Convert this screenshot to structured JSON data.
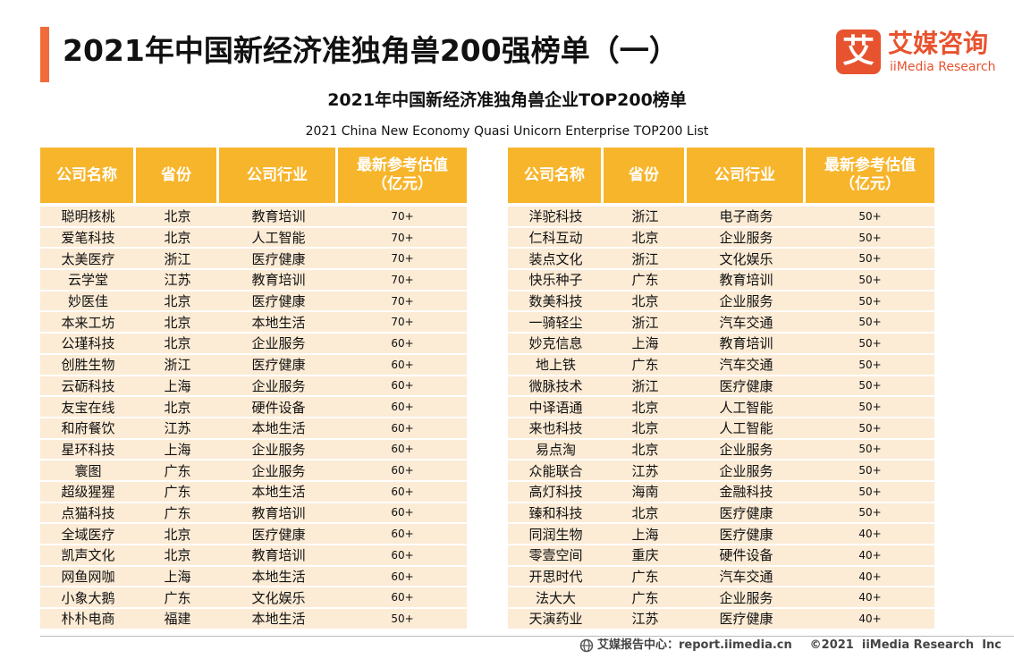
{
  "header": {
    "title": "2021年中国新经济准独角兽200强榜单（一）",
    "logo_icon": "艾",
    "logo_cn": "艾媒咨询",
    "logo_en": "iiMedia Research"
  },
  "subtitle_cn": "2021年中国新经济准独角兽企业TOP200榜单",
  "subtitle_en": "2021 China New Economy Quasi Unicorn Enterprise TOP200 List",
  "tables": [
    {
      "columns": [
        "公司名称",
        "省份",
        "公司行业",
        "最新参考估值\n（亿元）"
      ],
      "rows": [
        [
          "聪明核桃",
          "北京",
          "教育培训",
          "70+"
        ],
        [
          "爱笔科技",
          "北京",
          "人工智能",
          "70+"
        ],
        [
          "太美医疗",
          "浙江",
          "医疗健康",
          "70+"
        ],
        [
          "云学堂",
          "江苏",
          "教育培训",
          "70+"
        ],
        [
          "妙医佳",
          "北京",
          "医疗健康",
          "70+"
        ],
        [
          "本来工坊",
          "北京",
          "本地生活",
          "70+"
        ],
        [
          "公瑾科技",
          "北京",
          "企业服务",
          "60+"
        ],
        [
          "创胜生物",
          "浙江",
          "医疗健康",
          "60+"
        ],
        [
          "云砺科技",
          "上海",
          "企业服务",
          "60+"
        ],
        [
          "友宝在线",
          "北京",
          "硬件设备",
          "60+"
        ],
        [
          "和府餐饮",
          "江苏",
          "本地生活",
          "60+"
        ],
        [
          "星环科技",
          "上海",
          "企业服务",
          "60+"
        ],
        [
          "寰图",
          "广东",
          "企业服务",
          "60+"
        ],
        [
          "超级猩猩",
          "广东",
          "本地生活",
          "60+"
        ],
        [
          "点猫科技",
          "广东",
          "教育培训",
          "60+"
        ],
        [
          "全域医疗",
          "北京",
          "医疗健康",
          "60+"
        ],
        [
          "凯声文化",
          "北京",
          "教育培训",
          "60+"
        ],
        [
          "网鱼网咖",
          "上海",
          "本地生活",
          "60+"
        ],
        [
          "小象大鹅",
          "广东",
          "文化娱乐",
          "60+"
        ],
        [
          "朴朴电商",
          "福建",
          "本地生活",
          "50+"
        ]
      ]
    },
    {
      "columns": [
        "公司名称",
        "省份",
        "公司行业",
        "最新参考估值\n（亿元）"
      ],
      "rows": [
        [
          "洋驼科技",
          "浙江",
          "电子商务",
          "50+"
        ],
        [
          "仁科互动",
          "北京",
          "企业服务",
          "50+"
        ],
        [
          "装点文化",
          "浙江",
          "文化娱乐",
          "50+"
        ],
        [
          "快乐种子",
          "广东",
          "教育培训",
          "50+"
        ],
        [
          "数美科技",
          "北京",
          "企业服务",
          "50+"
        ],
        [
          "一骑轻尘",
          "浙江",
          "汽车交通",
          "50+"
        ],
        [
          "妙克信息",
          "上海",
          "教育培训",
          "50+"
        ],
        [
          "地上铁",
          "广东",
          "汽车交通",
          "50+"
        ],
        [
          "微脉技术",
          "浙江",
          "医疗健康",
          "50+"
        ],
        [
          "中译语通",
          "北京",
          "人工智能",
          "50+"
        ],
        [
          "来也科技",
          "北京",
          "人工智能",
          "50+"
        ],
        [
          "易点淘",
          "北京",
          "企业服务",
          "50+"
        ],
        [
          "众能联合",
          "江苏",
          "企业服务",
          "50+"
        ],
        [
          "高灯科技",
          "海南",
          "金融科技",
          "50+"
        ],
        [
          "臻和科技",
          "北京",
          "医疗健康",
          "50+"
        ],
        [
          "同润生物",
          "上海",
          "医疗健康",
          "40+"
        ],
        [
          "零壹空间",
          "重庆",
          "硬件设备",
          "40+"
        ],
        [
          "开思时代",
          "广东",
          "汽车交通",
          "40+"
        ],
        [
          "法大大",
          "广东",
          "企业服务",
          "40+"
        ],
        [
          "天演药业",
          "江苏",
          "医疗健康",
          "40+"
        ]
      ]
    }
  ],
  "footer": {
    "left": "艾媒报告中心：report.iimedia.cn",
    "right": "©2021  iiMedia Research  Inc"
  }
}
